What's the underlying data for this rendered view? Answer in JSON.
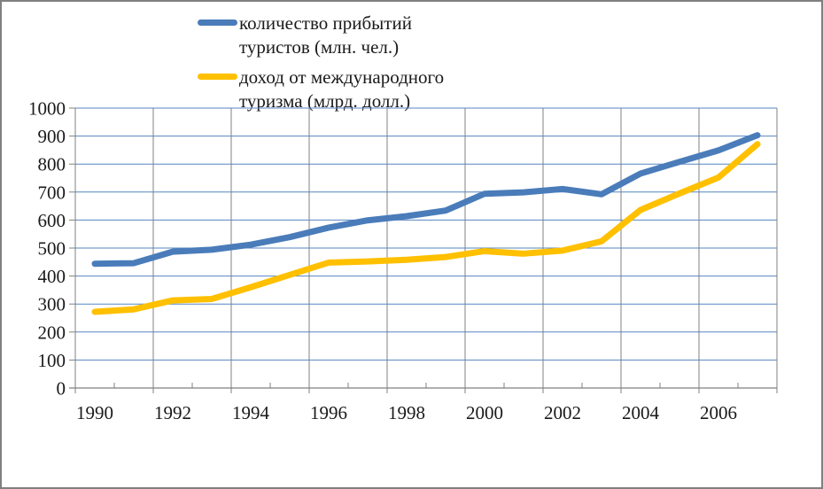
{
  "chart_data": {
    "type": "line",
    "title": "",
    "xlabel": "",
    "ylabel": "",
    "x": [
      1990,
      1991,
      1992,
      1993,
      1994,
      1995,
      1996,
      1997,
      1998,
      1999,
      2000,
      2001,
      2002,
      2003,
      2004,
      2005,
      2006,
      2007
    ],
    "xtick_labels": [
      "1990",
      "1992",
      "1994",
      "1996",
      "1998",
      "2000",
      "2002",
      "2004",
      "2006"
    ],
    "yticks": [
      0,
      100,
      200,
      300,
      400,
      500,
      600,
      700,
      800,
      900,
      1000
    ],
    "ytick_labels": [
      "0",
      "100",
      "200",
      "300",
      "400",
      "500",
      "600",
      "700",
      "800",
      "900",
      "1000"
    ],
    "ylim": [
      0,
      1000
    ],
    "grid": {
      "horizontal": true,
      "vertical": true,
      "horizontal_color": "#5585c2",
      "vertical_color": "#808080"
    },
    "axis_color": "#808080",
    "legend_position": "top-left",
    "series": [
      {
        "name": "количество прибытий туристов (млн. чел.)",
        "color": "#4a7cba",
        "values": [
          444,
          446,
          487,
          494,
          512,
          539,
          573,
          599,
          614,
          634,
          694,
          699,
          711,
          692,
          766,
          808,
          849,
          903
        ]
      },
      {
        "name": "доход от международного туризма (млрд. долл.)",
        "color": "#ffc000",
        "values": [
          272,
          281,
          313,
          318,
          360,
          404,
          448,
          452,
          458,
          468,
          489,
          480,
          491,
          524,
          636,
          695,
          752,
          871
        ]
      }
    ]
  },
  "legend": {
    "items": [
      {
        "line1": "количество прибытий",
        "line2": "туристов (млн. чел.)"
      },
      {
        "line1": "доход от международного",
        "line2": "туризма (млрд. долл.)"
      }
    ]
  }
}
